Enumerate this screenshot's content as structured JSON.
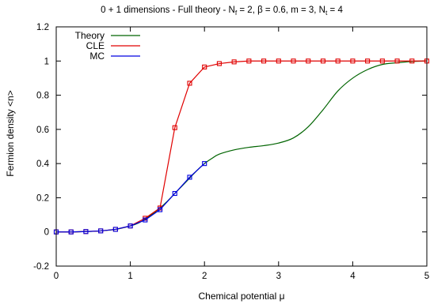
{
  "chart_data": {
    "type": "line",
    "title": "0 + 1 dimensions - Full theory - N",
    "title_parts": {
      "lead": "0 + 1 dimensions - Full theory - N",
      "nf_sub": "f",
      "mid": " = 2, β = 0.6, m = 3, N",
      "nt_sub": "t",
      "tail": " = 4"
    },
    "xlabel": "Chemical potential μ",
    "ylabel": "Fermion density <n>",
    "xlim": [
      0,
      5
    ],
    "ylim": [
      -0.2,
      1.2
    ],
    "xticks": [
      0,
      1,
      2,
      3,
      4,
      5
    ],
    "yticks": [
      -0.2,
      0,
      0.2,
      0.4,
      0.6,
      0.8,
      1,
      1.2
    ],
    "xtick_labels": [
      "0",
      "1",
      "2",
      "3",
      "4",
      "5"
    ],
    "ytick_labels": [
      "-0.2",
      "0",
      "0.2",
      "0.4",
      "0.6",
      "0.8",
      "1",
      "1.2"
    ],
    "grid": false,
    "legend": "top-left",
    "series": [
      {
        "name": "Theory",
        "color": "#006400",
        "marker": "none",
        "x": [
          0,
          0.2,
          0.4,
          0.6,
          0.8,
          1.0,
          1.1,
          1.2,
          1.3,
          1.4,
          1.5,
          1.6,
          1.7,
          1.8,
          1.9,
          2.0,
          2.1,
          2.2,
          2.4,
          2.6,
          2.8,
          3.0,
          3.2,
          3.4,
          3.6,
          3.8,
          4.0,
          4.2,
          4.4,
          4.6,
          4.8,
          5.0
        ],
        "y": [
          0.0,
          0.0,
          0.002,
          0.006,
          0.015,
          0.035,
          0.05,
          0.075,
          0.105,
          0.14,
          0.18,
          0.225,
          0.27,
          0.315,
          0.36,
          0.4,
          0.43,
          0.455,
          0.48,
          0.495,
          0.505,
          0.52,
          0.55,
          0.615,
          0.715,
          0.825,
          0.9,
          0.95,
          0.98,
          0.99,
          0.997,
          1.0
        ]
      },
      {
        "name": "CLE",
        "color": "#e00000",
        "marker": "square",
        "x": [
          0,
          0.2,
          0.4,
          0.6,
          0.8,
          1.0,
          1.2,
          1.4,
          1.6,
          1.8,
          2.0,
          2.2,
          2.4,
          2.6,
          2.8,
          3.0,
          3.2,
          3.4,
          3.6,
          3.8,
          4.0,
          4.2,
          4.4,
          4.6,
          4.8,
          5.0
        ],
        "y": [
          0.0,
          0.0,
          0.002,
          0.006,
          0.015,
          0.035,
          0.08,
          0.14,
          0.61,
          0.87,
          0.965,
          0.985,
          0.995,
          1.0,
          1.0,
          1.0,
          1.0,
          1.0,
          1.0,
          1.0,
          1.0,
          1.0,
          1.0,
          1.0,
          1.0,
          1.0
        ]
      },
      {
        "name": "MC",
        "color": "#0000e0",
        "marker": "square",
        "x": [
          0,
          0.2,
          0.4,
          0.6,
          0.8,
          1.0,
          1.2,
          1.4,
          1.6,
          1.8,
          2.0
        ],
        "y": [
          0.0,
          0.0,
          0.002,
          0.006,
          0.015,
          0.035,
          0.07,
          0.13,
          0.225,
          0.32,
          0.4
        ]
      }
    ]
  }
}
